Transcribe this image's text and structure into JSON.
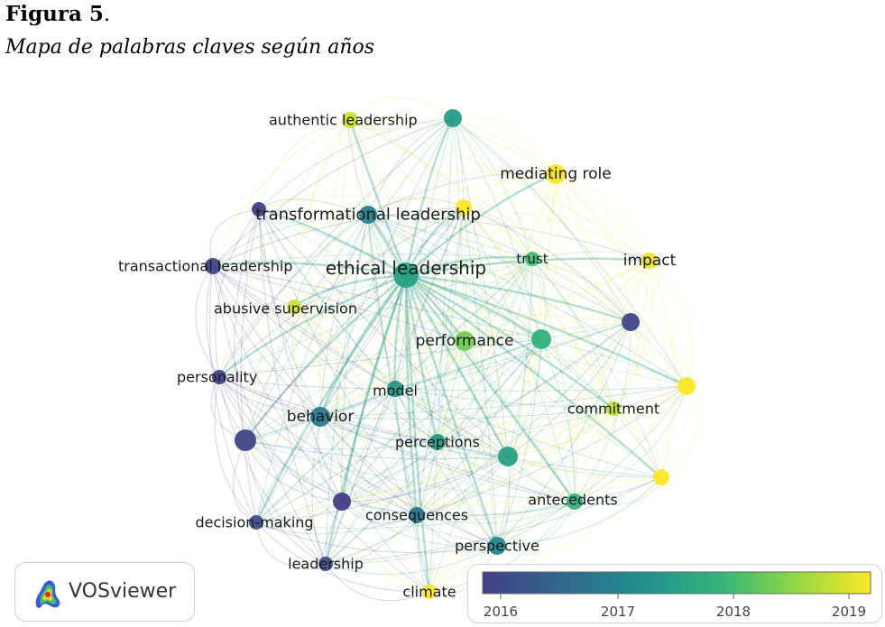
{
  "figure": {
    "label_bold": "Figura 5",
    "label_suffix": ".",
    "subtitle": "Mapa de palabras claves según años"
  },
  "network": {
    "nodes": [
      {
        "id": "ethical-leadership",
        "label": "ethical leadership",
        "year": 2017.5,
        "size": "large"
      },
      {
        "id": "transformational-leadership",
        "label": "transformational leadership",
        "year": 2016.9,
        "size": "medium"
      },
      {
        "id": "authentic-leadership",
        "label": "authentic leadership",
        "year": 2019.0,
        "size": "small"
      },
      {
        "id": "mediating-role",
        "label": "mediating role",
        "year": 2019.3,
        "size": "medium"
      },
      {
        "id": "trust",
        "label": "trust",
        "year": 2018.0,
        "size": "small"
      },
      {
        "id": "impact",
        "label": "impact",
        "year": 2019.2,
        "size": "small"
      },
      {
        "id": "transactional-leadership",
        "label": "transactional leadership",
        "year": 2016.1,
        "size": "small"
      },
      {
        "id": "abusive-supervision",
        "label": "abusive supervision",
        "year": 2019.0,
        "size": "small"
      },
      {
        "id": "performance",
        "label": "performance",
        "year": 2018.4,
        "size": "medium"
      },
      {
        "id": "personality",
        "label": "personality",
        "year": 2016.1,
        "size": "small"
      },
      {
        "id": "model",
        "label": "model",
        "year": 2017.3,
        "size": "small"
      },
      {
        "id": "behavior",
        "label": "behavior",
        "year": 2016.8,
        "size": "medium"
      },
      {
        "id": "commitment",
        "label": "commitment",
        "year": 2018.9,
        "size": "small"
      },
      {
        "id": "perceptions",
        "label": "perceptions",
        "year": 2017.4,
        "size": "small"
      },
      {
        "id": "antecedents",
        "label": "antecedents",
        "year": 2017.8,
        "size": "small"
      },
      {
        "id": "consequences",
        "label": "consequences",
        "year": 2016.7,
        "size": "small"
      },
      {
        "id": "decision-making",
        "label": "decision-making",
        "year": 2016.2,
        "size": "small"
      },
      {
        "id": "perspective",
        "label": "perspective",
        "year": 2017.1,
        "size": "small"
      },
      {
        "id": "leadership",
        "label": "leadership",
        "year": 2016.2,
        "size": "small"
      },
      {
        "id": "climate",
        "label": "climate",
        "year": 2019.3,
        "size": "small"
      },
      {
        "id": "unlabeled-top",
        "label": "",
        "year": 2017.4,
        "size": "small"
      },
      {
        "id": "unlabeled-mid-right",
        "label": "",
        "year": 2017.8,
        "size": "small"
      },
      {
        "id": "unlabeled-right",
        "label": "",
        "year": 2019.5,
        "size": "small"
      },
      {
        "id": "unlabeled-lower-right",
        "label": "",
        "year": 2019.6,
        "size": "small"
      },
      {
        "id": "unlabeled-left",
        "label": "",
        "year": 2016.1,
        "size": "small"
      },
      {
        "id": "unlabeled-lower-left",
        "label": "",
        "year": 2016.1,
        "size": "small"
      },
      {
        "id": "unlabeled-yellow-center",
        "label": "",
        "year": 2019.3,
        "size": "small"
      }
    ]
  },
  "logo": {
    "text": "VOSviewer"
  },
  "legend": {
    "years": [
      "2016",
      "2017",
      "2018",
      "2019"
    ],
    "gradient_colors": [
      "#433e85",
      "#31688e",
      "#20908d",
      "#35b779",
      "#8fd744",
      "#fde725"
    ]
  }
}
